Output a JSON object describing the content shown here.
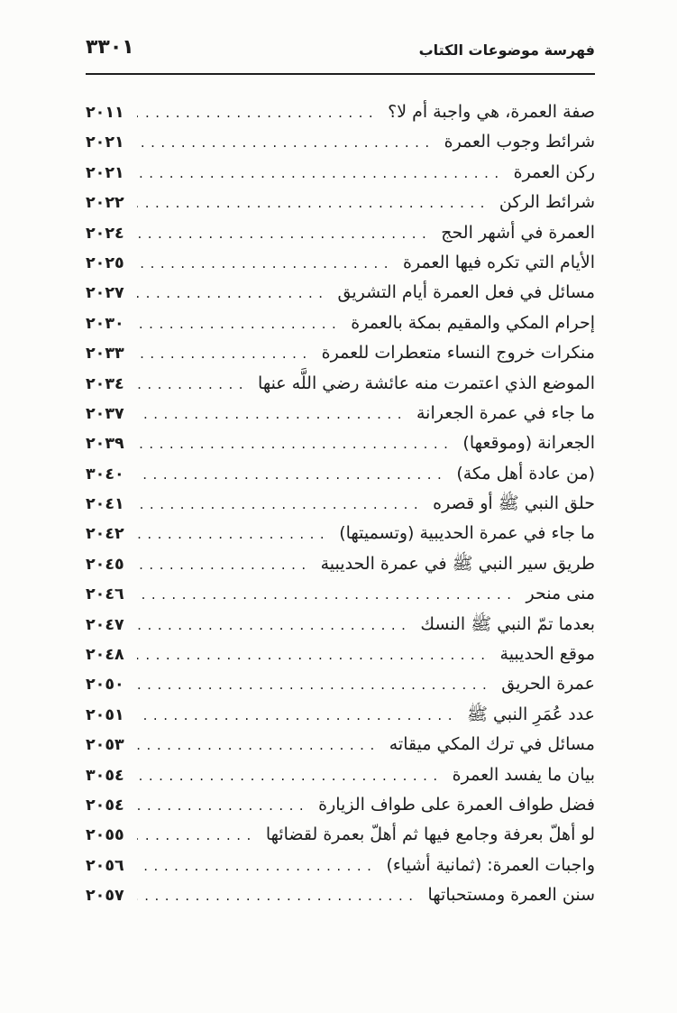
{
  "colors": {
    "ink": "#1c1c1c",
    "paper": "#fcfcfa"
  },
  "header": {
    "title": "فهرسة موضوعات الكتاب",
    "page_number": "٣٣٠١"
  },
  "toc": {
    "entries": [
      {
        "title": "صفة العمرة، هي واجبة أم لا؟",
        "page": "٢٠١١"
      },
      {
        "title": "شرائط وجوب العمرة",
        "page": "٢٠٢١"
      },
      {
        "title": "ركن العمرة",
        "page": "٢٠٢١"
      },
      {
        "title": "شرائط الركن",
        "page": "٢٠٢٢"
      },
      {
        "title": "العمرة في أشهر الحج",
        "page": "٢٠٢٤"
      },
      {
        "title": "الأيام التي تكره فيها العمرة",
        "page": "٢٠٢٥"
      },
      {
        "title": "مسائل في فعل العمرة أيام التشريق",
        "page": "٢٠٢٧"
      },
      {
        "title": "إحرام المكي والمقيم بمكة بالعمرة",
        "page": "٢٠٣٠"
      },
      {
        "title": "منكرات خروج النساء متعطرات للعمرة",
        "page": "٢٠٣٣"
      },
      {
        "title": "الموضع الذي اعتمرت منه عائشة رضي اللَّه عنها",
        "page": "٢٠٣٤"
      },
      {
        "title": "ما جاء في عمرة الجعرانة",
        "page": "٢٠٣٧"
      },
      {
        "title": "الجعرانة (وموقعها)",
        "page": "٢٠٣٩"
      },
      {
        "title": "(من عادة أهل مكة)",
        "page": "٣٠٤٠"
      },
      {
        "title": "حلق النبي ﷺ أو قصره",
        "page": "٢٠٤١"
      },
      {
        "title": "ما جاء في عمرة الحديبية (وتسميتها)",
        "page": "٢٠٤٢"
      },
      {
        "title": "طريق سير النبي ﷺ في عمرة الحديبية",
        "page": "٢٠٤٥"
      },
      {
        "title": "منى منحر",
        "page": "٢٠٤٦"
      },
      {
        "title": "بعدما تمّ النبي ﷺ النسك",
        "page": "٢٠٤٧"
      },
      {
        "title": "موقع الحديبية",
        "page": "٢٠٤٨"
      },
      {
        "title": "عمرة الحريق",
        "page": "٢٠٥٠"
      },
      {
        "title": "عدد عُمَرِ النبي ﷺ",
        "page": "٢٠٥١"
      },
      {
        "title": "مسائل في ترك المكي ميقاته",
        "page": "٢٠٥٣"
      },
      {
        "title": "بيان ما يفسد العمرة",
        "page": "٣٠٥٤"
      },
      {
        "title": "فضل طواف العمرة على طواف الزيارة",
        "page": "٢٠٥٤"
      },
      {
        "title": "لو أهلّ بعرفة وجامع فيها ثم أهلّ بعمرة لقضائها",
        "page": "٢٠٥٥"
      },
      {
        "title": "واجبات العمرة: (ثمانية أشياء)",
        "page": "٢٠٥٦"
      },
      {
        "title": "سنن العمرة ومستحباتها",
        "page": "٢٠٥٧"
      }
    ]
  }
}
